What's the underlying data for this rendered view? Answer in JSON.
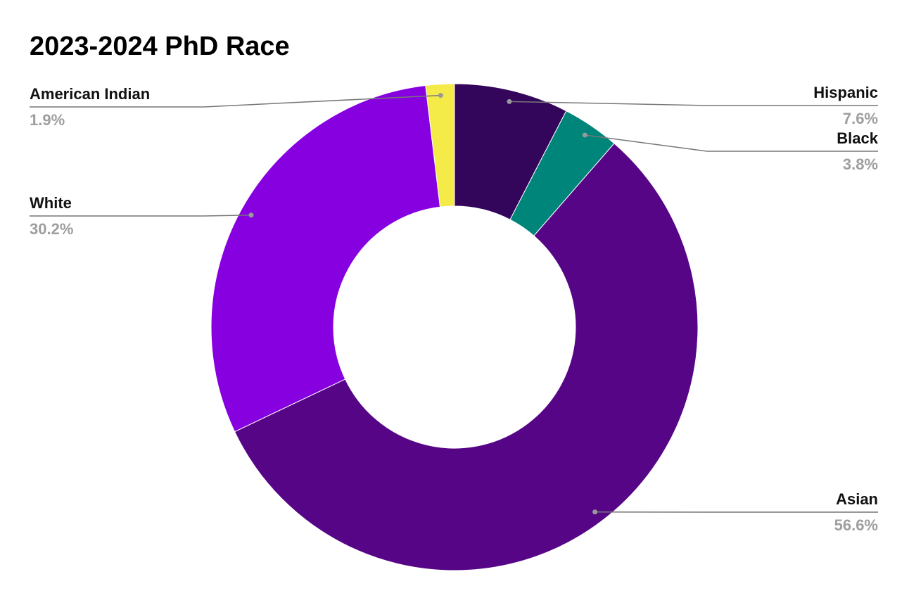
{
  "chart_data": {
    "type": "pie",
    "title": "2023-2024 PhD Race",
    "categories": [
      "Hispanic",
      "Black",
      "Asian",
      "White",
      "American Indian"
    ],
    "values": [
      7.6,
      3.8,
      56.6,
      30.2,
      1.9
    ],
    "value_labels": [
      "7.6%",
      "3.8%",
      "56.6%",
      "30.2%",
      "1.9%"
    ],
    "colors": [
      "#33065b",
      "#00857a",
      "#560587",
      "#8700e0",
      "#f4eb49"
    ],
    "donut": true
  }
}
